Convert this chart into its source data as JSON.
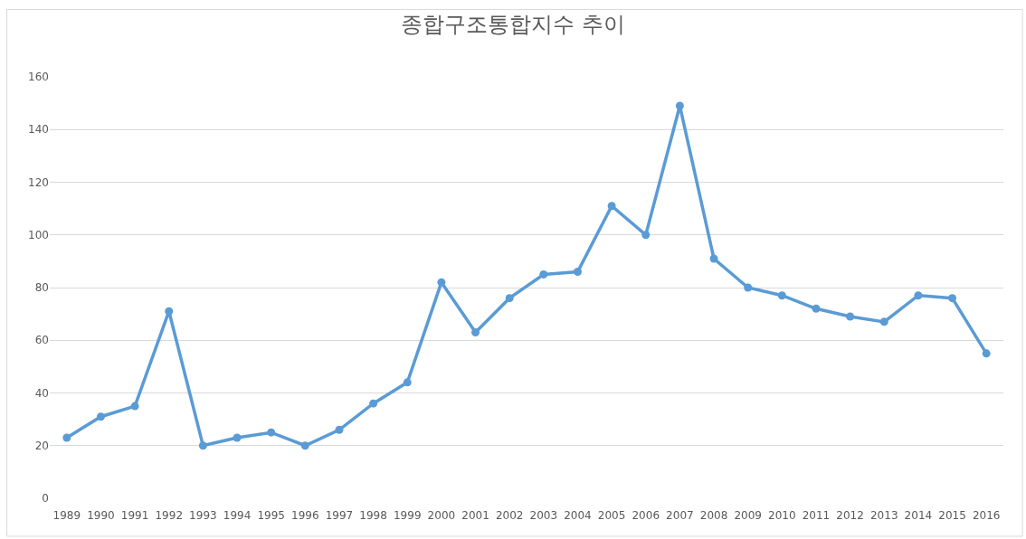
{
  "chart_data": {
    "type": "line",
    "title": "종합구조통합지수 추이",
    "categories": [
      "1989",
      "1990",
      "1991",
      "1992",
      "1993",
      "1994",
      "1995",
      "1996",
      "1997",
      "1998",
      "1999",
      "2000",
      "2001",
      "2002",
      "2003",
      "2004",
      "2005",
      "2006",
      "2007",
      "2008",
      "2009",
      "2010",
      "2011",
      "2012",
      "2013",
      "2014",
      "2015",
      "2016"
    ],
    "series": [
      {
        "color": "#5b9bd5",
        "values": [
          23,
          31,
          35,
          71,
          20,
          23,
          25,
          20,
          26,
          36,
          44,
          82,
          63,
          76,
          85,
          86,
          111,
          100,
          149,
          91,
          80,
          77,
          72,
          69,
          67,
          77,
          76,
          55
        ]
      }
    ],
    "ylim": [
      0,
      160
    ],
    "yticks": [
      0,
      20,
      40,
      60,
      80,
      100,
      120,
      140,
      160
    ],
    "grid": "y",
    "marker": "circle",
    "line_style": "solid"
  }
}
